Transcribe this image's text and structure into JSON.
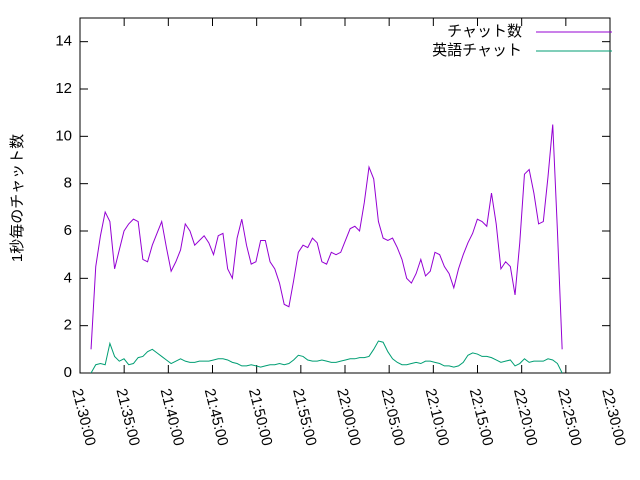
{
  "chart_data": {
    "type": "line",
    "y_label": "1秒毎のチャット数",
    "x": [
      "21:31:15",
      "21:31:47",
      "21:32:19",
      "21:32:51",
      "21:33:23",
      "21:33:55",
      "21:34:27",
      "21:34:59",
      "21:35:31",
      "21:36:03",
      "21:36:35",
      "21:37:07",
      "21:37:39",
      "21:38:11",
      "21:38:43",
      "21:39:15",
      "21:39:47",
      "21:40:19",
      "21:40:51",
      "21:41:23",
      "21:41:55",
      "21:42:27",
      "21:42:59",
      "21:43:31",
      "21:44:03",
      "21:44:35",
      "21:45:07",
      "21:45:39",
      "21:46:11",
      "21:46:43",
      "21:47:15",
      "21:47:47",
      "21:48:19",
      "21:48:51",
      "21:49:23",
      "21:49:55",
      "21:50:27",
      "21:50:59",
      "21:51:31",
      "21:52:03",
      "21:52:35",
      "21:53:07",
      "21:53:39",
      "21:54:11",
      "21:54:43",
      "21:55:15",
      "21:55:47",
      "21:56:19",
      "21:56:51",
      "21:57:23",
      "21:57:55",
      "21:58:27",
      "21:58:59",
      "21:59:31",
      "22:00:03",
      "22:00:35",
      "22:01:07",
      "22:01:39",
      "22:02:11",
      "22:02:43",
      "22:03:15",
      "22:03:47",
      "22:04:19",
      "22:04:51",
      "22:05:23",
      "22:05:55",
      "22:06:27",
      "22:06:59",
      "22:07:31",
      "22:08:03",
      "22:08:35",
      "22:09:07",
      "22:09:39",
      "22:10:11",
      "22:10:43",
      "22:11:15",
      "22:11:47",
      "22:12:19",
      "22:12:51",
      "22:13:23",
      "22:13:55",
      "22:14:27",
      "22:14:59",
      "22:15:31",
      "22:16:03",
      "22:16:35",
      "22:17:07",
      "22:17:39",
      "22:18:11",
      "22:18:43",
      "22:19:15",
      "22:19:47",
      "22:20:19",
      "22:20:51",
      "22:21:23",
      "22:21:55",
      "22:22:27",
      "22:22:59",
      "22:23:31",
      "22:24:03",
      "22:24:35"
    ],
    "series": [
      {
        "name": "チャット数",
        "color": "#9400d3",
        "values": [
          1.0,
          4.5,
          5.8,
          6.8,
          6.4,
          4.4,
          5.2,
          6.0,
          6.3,
          6.5,
          6.4,
          4.8,
          4.7,
          5.4,
          5.9,
          6.4,
          5.3,
          4.3,
          4.7,
          5.2,
          6.3,
          6.0,
          5.4,
          5.6,
          5.8,
          5.5,
          5.0,
          5.8,
          5.9,
          4.4,
          4.0,
          5.7,
          6.5,
          5.4,
          4.6,
          4.7,
          5.6,
          5.6,
          4.7,
          4.4,
          3.8,
          2.9,
          2.8,
          3.9,
          5.1,
          5.4,
          5.3,
          5.7,
          5.5,
          4.7,
          4.6,
          5.1,
          5.0,
          5.1,
          5.6,
          6.1,
          6.2,
          6.0,
          7.2,
          8.7,
          8.2,
          6.4,
          5.7,
          5.6,
          5.7,
          5.3,
          4.8,
          4.0,
          3.8,
          4.2,
          4.8,
          4.1,
          4.3,
          5.1,
          5.0,
          4.5,
          4.2,
          3.6,
          4.4,
          5.0,
          5.5,
          5.9,
          6.5,
          6.4,
          6.2,
          7.6,
          6.3,
          4.4,
          4.7,
          4.5,
          3.3,
          5.5,
          8.4,
          8.6,
          7.6,
          6.3,
          6.4,
          8.3,
          10.5,
          6.0,
          1.0
        ]
      },
      {
        "name": "英語チャット",
        "color": "#009e73",
        "values": [
          0.0,
          0.35,
          0.4,
          0.35,
          1.25,
          0.7,
          0.5,
          0.6,
          0.35,
          0.4,
          0.65,
          0.7,
          0.9,
          1.0,
          0.85,
          0.7,
          0.55,
          0.4,
          0.5,
          0.6,
          0.5,
          0.45,
          0.45,
          0.5,
          0.5,
          0.5,
          0.55,
          0.6,
          0.6,
          0.55,
          0.45,
          0.4,
          0.3,
          0.3,
          0.35,
          0.3,
          0.25,
          0.3,
          0.35,
          0.35,
          0.4,
          0.35,
          0.4,
          0.55,
          0.75,
          0.7,
          0.55,
          0.5,
          0.5,
          0.55,
          0.5,
          0.45,
          0.45,
          0.5,
          0.55,
          0.6,
          0.6,
          0.65,
          0.65,
          0.7,
          1.0,
          1.35,
          1.3,
          0.9,
          0.6,
          0.45,
          0.35,
          0.35,
          0.4,
          0.45,
          0.4,
          0.5,
          0.5,
          0.45,
          0.4,
          0.3,
          0.3,
          0.25,
          0.3,
          0.45,
          0.75,
          0.85,
          0.8,
          0.7,
          0.7,
          0.65,
          0.55,
          0.45,
          0.5,
          0.55,
          0.3,
          0.4,
          0.6,
          0.45,
          0.5,
          0.5,
          0.5,
          0.6,
          0.55,
          0.4,
          0.0
        ]
      }
    ],
    "xlim": [
      "21:30:00",
      "22:30:00"
    ],
    "xticks": [
      "21:30:00",
      "21:35:00",
      "21:40:00",
      "21:45:00",
      "21:50:00",
      "21:55:00",
      "22:00:00",
      "22:05:00",
      "22:10:00",
      "22:15:00",
      "22:20:00",
      "22:25:00",
      "22:30:00"
    ],
    "ylim": [
      0,
      15
    ],
    "yticks": [
      0,
      2,
      4,
      6,
      8,
      10,
      12,
      14
    ],
    "legend": "top-right",
    "grid": false
  }
}
